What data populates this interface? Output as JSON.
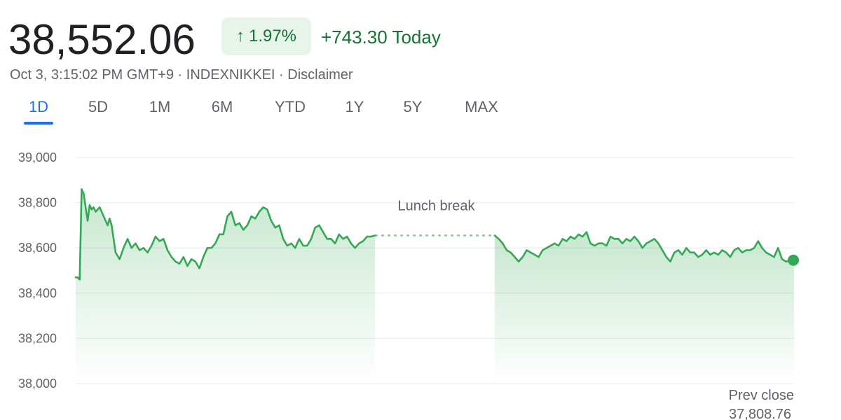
{
  "header": {
    "price": "38,552.06",
    "change_arrow": "↑",
    "change_percent": "1.97%",
    "change_today": "+743.30 Today",
    "timestamp": "Oct 3, 3:15:02 PM GMT+9",
    "separator": " · ",
    "symbol": "INDEXNIKKEI",
    "disclaimer": "Disclaimer"
  },
  "tabs": [
    {
      "label": "1D",
      "active": true
    },
    {
      "label": "5D",
      "active": false
    },
    {
      "label": "1M",
      "active": false
    },
    {
      "label": "6M",
      "active": false
    },
    {
      "label": "YTD",
      "active": false
    },
    {
      "label": "1Y",
      "active": false
    },
    {
      "label": "5Y",
      "active": false
    },
    {
      "label": "MAX",
      "active": false
    }
  ],
  "colors": {
    "up": "#34a853",
    "up_text": "#137333",
    "pill_bg": "#e6f4ea",
    "tab_active": "#1a73e8",
    "grid": "#e8eaed",
    "axis_text": "#5f6368"
  },
  "chart_data": {
    "type": "area",
    "title": "",
    "xlabel": "",
    "ylabel": "",
    "ylim": [
      38000,
      39000
    ],
    "yticks": [
      39000,
      38800,
      38600,
      38400,
      38200,
      38000
    ],
    "ytick_labels": [
      "39,000",
      "38,800",
      "38,600",
      "38,400",
      "38,200",
      "38,000"
    ],
    "x_range": [
      0,
      360
    ],
    "grid": true,
    "lunch_break": {
      "label": "Lunch break",
      "start": 150,
      "end": 210
    },
    "prev_close": {
      "label": "Prev close",
      "value_label": "37,808.76",
      "value": 37808.76
    },
    "series": [
      {
        "segment": "morning",
        "x": [
          0,
          1,
          2,
          3,
          4,
          5,
          6,
          7,
          8,
          9,
          10,
          12,
          14,
          16,
          17,
          18,
          20,
          22,
          24,
          26,
          28,
          30,
          32,
          34,
          36,
          38,
          40,
          42,
          44,
          46,
          48,
          50,
          52,
          54,
          56,
          58,
          60,
          62,
          64,
          66,
          68,
          70,
          72,
          74,
          76,
          78,
          80,
          82,
          84,
          86,
          88,
          90,
          92,
          94,
          96,
          98,
          100,
          102,
          104,
          106,
          108,
          110,
          112,
          114,
          116,
          118,
          120,
          122,
          124,
          126,
          128,
          130,
          132,
          134,
          136,
          138,
          140,
          142,
          144,
          146,
          148,
          150
        ],
        "values": [
          38470,
          38470,
          38460,
          38860,
          38840,
          38780,
          38720,
          38790,
          38770,
          38780,
          38760,
          38780,
          38740,
          38700,
          38730,
          38700,
          38580,
          38550,
          38600,
          38640,
          38600,
          38620,
          38590,
          38600,
          38580,
          38610,
          38650,
          38630,
          38640,
          38590,
          38560,
          38540,
          38530,
          38560,
          38520,
          38550,
          38540,
          38510,
          38560,
          38600,
          38600,
          38620,
          38660,
          38660,
          38740,
          38760,
          38700,
          38710,
          38680,
          38700,
          38740,
          38730,
          38760,
          38780,
          38770,
          38720,
          38690,
          38700,
          38640,
          38610,
          38620,
          38600,
          38640,
          38610,
          38610,
          38640,
          38690,
          38700,
          38670,
          38640,
          38640,
          38620,
          38660,
          38640,
          38650,
          38620,
          38600,
          38620,
          38630,
          38650,
          38650,
          38655
        ]
      },
      {
        "segment": "afternoon",
        "x": [
          210,
          212,
          214,
          216,
          218,
          220,
          222,
          224,
          226,
          228,
          230,
          232,
          234,
          236,
          238,
          240,
          242,
          244,
          246,
          248,
          250,
          252,
          254,
          256,
          258,
          260,
          262,
          264,
          266,
          268,
          270,
          272,
          274,
          276,
          278,
          280,
          282,
          284,
          286,
          288,
          290,
          292,
          294,
          296,
          298,
          300,
          302,
          304,
          306,
          308,
          310,
          312,
          314,
          316,
          318,
          320,
          322,
          324,
          326,
          328,
          330,
          332,
          334,
          336,
          338,
          340,
          342,
          344,
          346,
          348,
          350,
          352,
          354,
          356,
          358,
          360
        ],
        "values": [
          38655,
          38640,
          38620,
          38590,
          38580,
          38560,
          38540,
          38560,
          38590,
          38580,
          38570,
          38560,
          38590,
          38600,
          38610,
          38620,
          38610,
          38640,
          38630,
          38650,
          38640,
          38660,
          38650,
          38670,
          38620,
          38610,
          38620,
          38620,
          38610,
          38650,
          38640,
          38640,
          38620,
          38640,
          38630,
          38650,
          38630,
          38600,
          38620,
          38630,
          38640,
          38620,
          38590,
          38560,
          38540,
          38580,
          38590,
          38570,
          38600,
          38580,
          38580,
          38560,
          38570,
          38590,
          38570,
          38580,
          38570,
          38590,
          38580,
          38560,
          38590,
          38600,
          38580,
          38590,
          38590,
          38600,
          38630,
          38600,
          38580,
          38570,
          38560,
          38600,
          38550,
          38540,
          38545,
          38552
        ]
      }
    ]
  }
}
